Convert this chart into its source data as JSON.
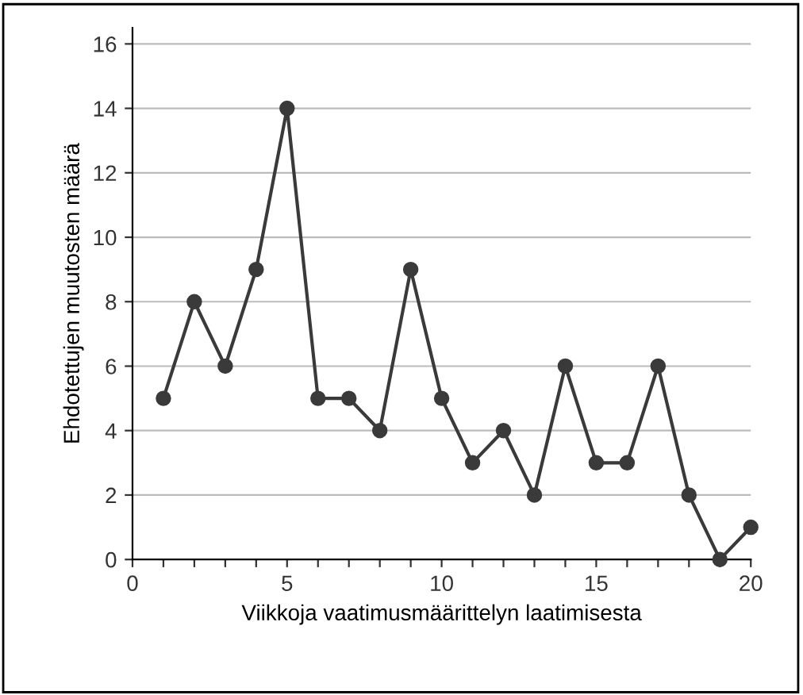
{
  "chart_data": {
    "type": "line",
    "xlabel": "Viikkoja vaatimusmäärittelyn laatimisesta",
    "ylabel": "Ehdotettujen muutosten määrä",
    "x": [
      1,
      2,
      3,
      4,
      5,
      6,
      7,
      8,
      9,
      10,
      11,
      12,
      13,
      14,
      15,
      16,
      17,
      18,
      19,
      20
    ],
    "series": [
      {
        "color": "#3a3a3a",
        "values": [
          5,
          8,
          6,
          9,
          14,
          5,
          5,
          4,
          9,
          5,
          3,
          4,
          2,
          6,
          3,
          3,
          6,
          2,
          0,
          1
        ]
      }
    ],
    "xlim": [
      0,
      20
    ],
    "ylim": [
      0,
      16.5
    ],
    "xticks": [
      0,
      {
        "value": 1,
        "label": null
      },
      {
        "value": 2,
        "label": null
      },
      {
        "value": 3,
        "label": null
      },
      {
        "value": 4,
        "label": null
      },
      5,
      {
        "value": 6,
        "label": null
      },
      {
        "value": 7,
        "label": null
      },
      {
        "value": 8,
        "label": null
      },
      {
        "value": 9,
        "label": null
      },
      10,
      {
        "value": 11,
        "label": null
      },
      {
        "value": 12,
        "label": null
      },
      {
        "value": 13,
        "label": null
      },
      {
        "value": 14,
        "label": null
      },
      15,
      {
        "value": 16,
        "label": null
      },
      {
        "value": 17,
        "label": null
      },
      {
        "value": 18,
        "label": null
      },
      {
        "value": 19,
        "label": null
      },
      20
    ],
    "yticks": [
      0,
      2,
      4,
      6,
      8,
      10,
      12,
      14,
      16
    ],
    "grid": "y",
    "marker": "circle",
    "line_style": "solid",
    "legend": false
  }
}
